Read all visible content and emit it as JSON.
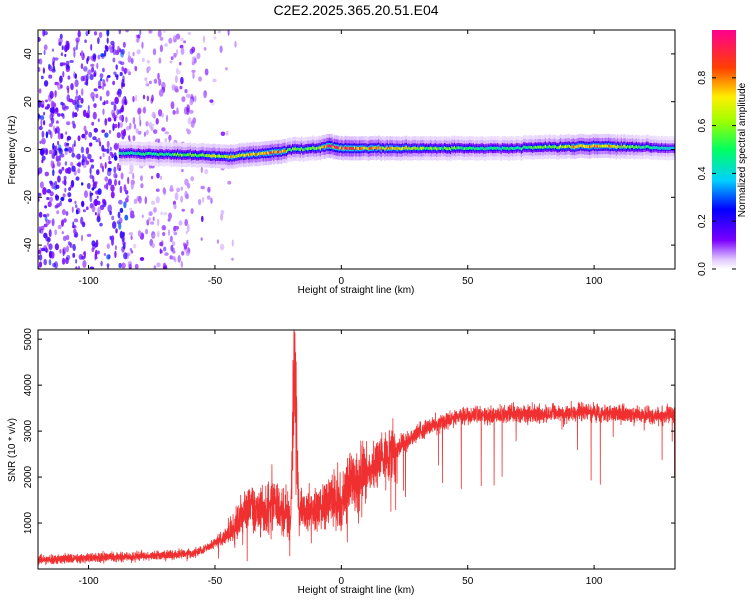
{
  "title": "C2E2.2025.365.20.51.E04",
  "chart_data": [
    {
      "type": "heatmap",
      "xlabel": "Height of straight line (km)",
      "ylabel": "Frequency (Hz)",
      "xlim": [
        -120,
        132
      ],
      "ylim": [
        -50,
        50
      ],
      "x_ticks": [
        "-100",
        "-50",
        "0",
        "50",
        "100"
      ],
      "x_tick_values": [
        -100,
        -50,
        0,
        50,
        100
      ],
      "y_ticks": [
        "-40",
        "-20",
        "0",
        "20",
        "40"
      ],
      "y_tick_values": [
        -40,
        -20,
        0,
        20,
        40
      ],
      "colorbar": {
        "label": "Normalized spectral amplitude",
        "range": [
          0,
          1
        ],
        "ticks": [
          "0.0",
          "0.2",
          "0.4",
          "0.6",
          "0.8"
        ],
        "tick_values": [
          0,
          0.2,
          0.4,
          0.6,
          0.8
        ],
        "colormap": "rainbow (violet → blue → cyan → green → yellow → red → magenta)"
      },
      "ridge": {
        "description": "narrow high-amplitude band centred near 0 Hz, visible from about -88 km upward; scattered low-amplitude noise below about -55 km",
        "x": [
          -88,
          -70,
          -55,
          -45,
          -35,
          -25,
          -20,
          -10,
          -5,
          0,
          20,
          50,
          65,
          80,
          100,
          120,
          132
        ],
        "center_hz": [
          -1.5,
          -2,
          -2.5,
          -3,
          -2,
          -1,
          0,
          0.5,
          1.5,
          0.5,
          0.5,
          0.5,
          0.5,
          1,
          1.5,
          1,
          0.5
        ],
        "peak_amplitude": [
          0.45,
          0.5,
          0.6,
          0.7,
          0.75,
          0.8,
          0.6,
          0.6,
          0.9,
          0.85,
          0.7,
          0.5,
          0.45,
          0.55,
          0.85,
          0.5,
          0.4
        ]
      },
      "grid": false
    },
    {
      "type": "line",
      "xlabel": "Height of straight line (km)",
      "ylabel": "SNR (10 * v/v)",
      "xlim": [
        -120,
        132
      ],
      "ylim": [
        0,
        5200
      ],
      "x_ticks": [
        "-100",
        "-50",
        "0",
        "50",
        "100"
      ],
      "x_tick_values": [
        -100,
        -50,
        0,
        50,
        100
      ],
      "y_ticks": [
        "1000",
        "2000",
        "3000",
        "4000",
        "5000"
      ],
      "y_tick_values": [
        1000,
        2000,
        3000,
        4000,
        5000
      ],
      "series": [
        {
          "color": "#f03030",
          "x": [
            -120,
            -110,
            -100,
            -90,
            -80,
            -70,
            -60,
            -55,
            -50,
            -45,
            -42,
            -40,
            -35,
            -30,
            -27,
            -25,
            -22,
            -20,
            -18.5,
            -17,
            -15,
            -10,
            -5,
            0,
            5,
            10,
            15,
            20,
            25,
            30,
            35,
            40,
            45,
            50,
            60,
            70,
            80,
            90,
            100,
            110,
            120,
            132
          ],
          "y": [
            200,
            220,
            240,
            260,
            280,
            300,
            340,
            420,
            560,
            760,
            900,
            1150,
            1350,
            1250,
            1500,
            1300,
            1250,
            1150,
            5000,
            1300,
            1250,
            1300,
            1450,
            1500,
            1900,
            2100,
            2300,
            2550,
            2750,
            2950,
            3100,
            3200,
            3300,
            3350,
            3350,
            3380,
            3380,
            3400,
            3420,
            3380,
            3330,
            3350
          ]
        }
      ],
      "grid": false
    }
  ]
}
